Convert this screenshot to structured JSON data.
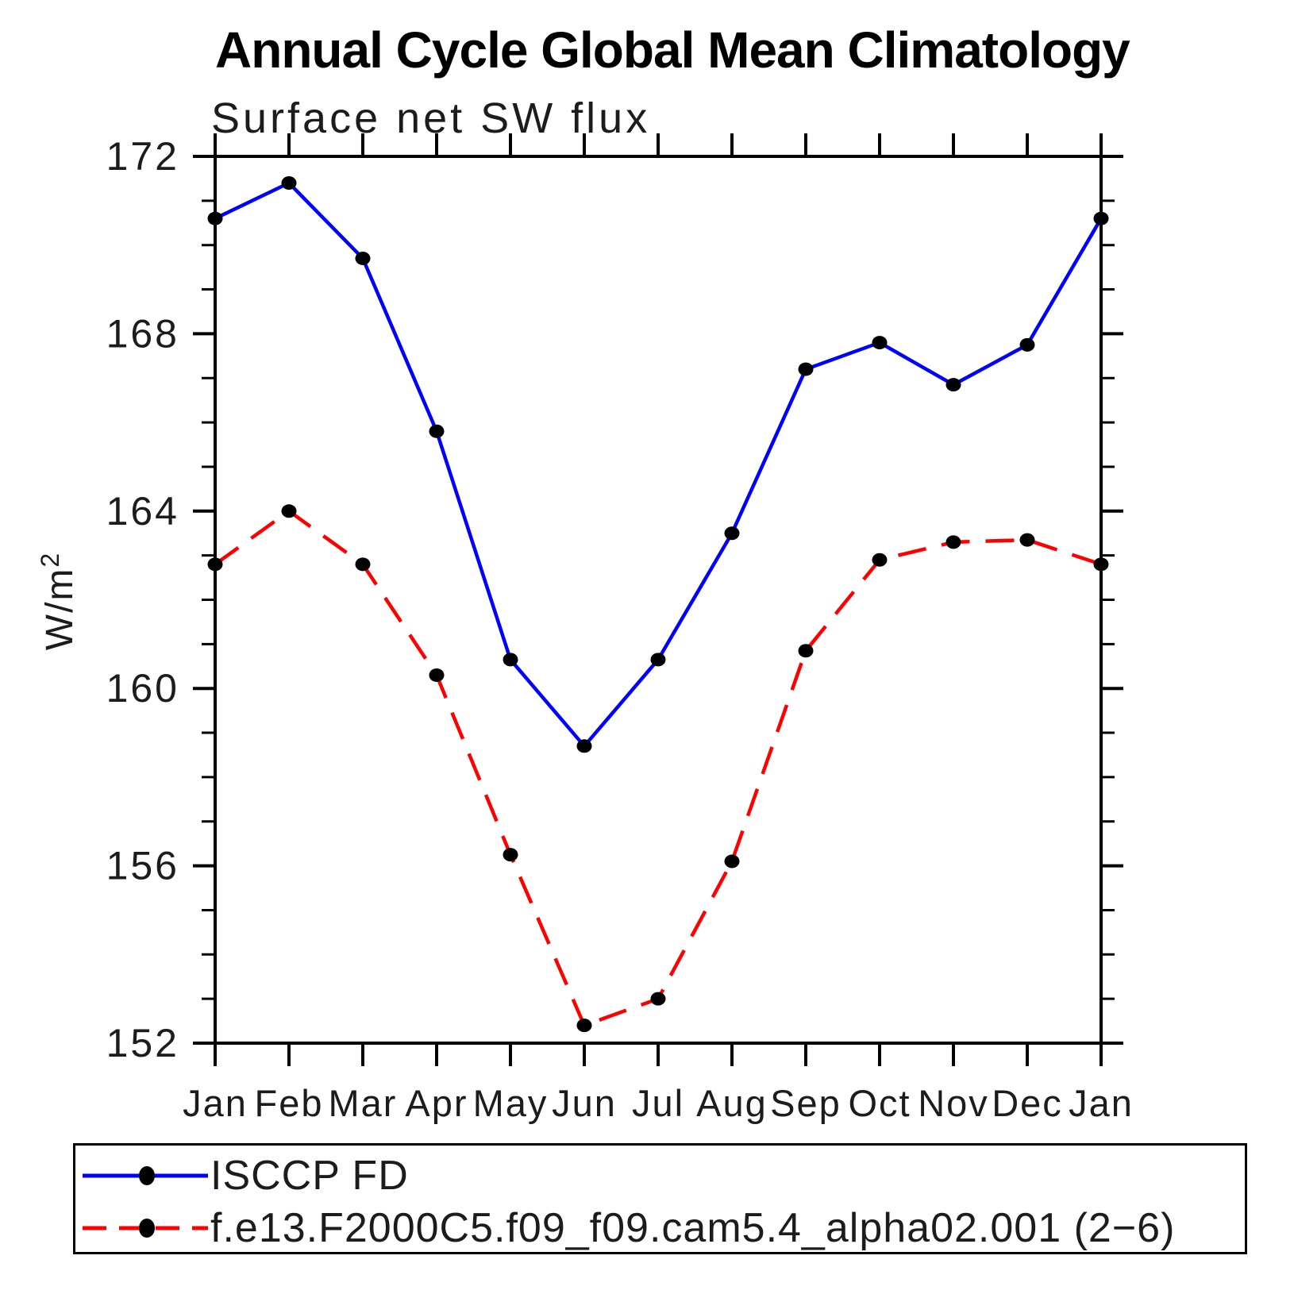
{
  "chart_data": {
    "type": "line",
    "title": "Annual Cycle Global Mean Climatology",
    "subtitle": "Surface net SW flux",
    "ylabel": {
      "base": "W/m",
      "sup": "2"
    },
    "categories": [
      "Jan",
      "Feb",
      "Mar",
      "Apr",
      "May",
      "Jun",
      "Jul",
      "Aug",
      "Sep",
      "Oct",
      "Nov",
      "Dec",
      "Jan"
    ],
    "series": [
      {
        "name": "ISCCP FD",
        "color": "#0000ff",
        "line": "solid",
        "marker": "filled-circle",
        "values": [
          170.6,
          171.4,
          169.7,
          165.8,
          160.65,
          158.7,
          160.65,
          163.5,
          167.2,
          167.8,
          166.85,
          167.75,
          170.6
        ]
      },
      {
        "name": "f.e13.F2000C5.f09_f09.cam5.4_alpha02.001 (2−6)",
        "color": "#ff0000",
        "line": "dashed",
        "marker": "filled-circle",
        "values": [
          162.8,
          164.0,
          162.8,
          160.3,
          156.25,
          152.4,
          153.0,
          156.1,
          160.85,
          162.9,
          163.3,
          163.35,
          162.8
        ]
      }
    ],
    "ylim": [
      152,
      172
    ],
    "ytick_major": [
      152,
      156,
      160,
      164,
      168,
      172
    ],
    "ytick_minor_step": 1,
    "grid": false,
    "legend_position": "bottom",
    "marker_color": "#000000",
    "axis_color": "#000000"
  }
}
